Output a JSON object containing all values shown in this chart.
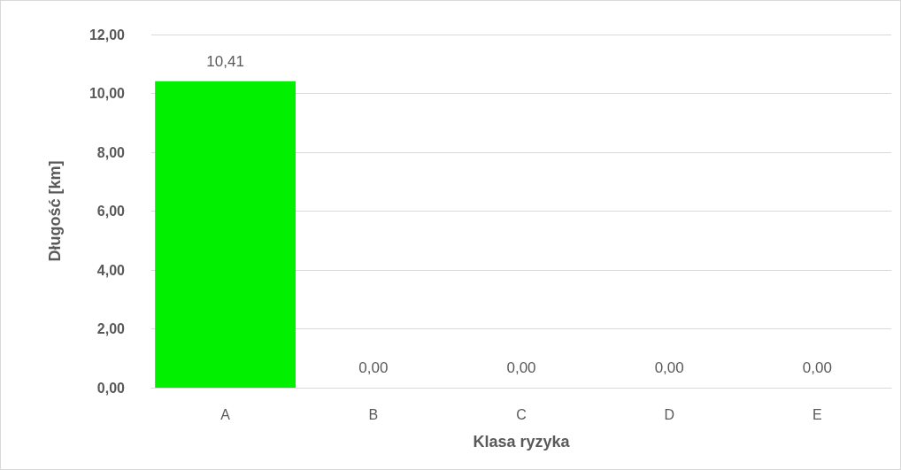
{
  "chart_data": {
    "type": "bar",
    "xlabel": "Klasa ryzyka",
    "ylabel": "Długość [km]",
    "categories": [
      "A",
      "B",
      "C",
      "D",
      "E"
    ],
    "values": [
      10.41,
      0,
      0,
      0,
      0
    ],
    "value_labels": [
      "10,41",
      "0,00",
      "0,00",
      "0,00",
      "0,00"
    ],
    "color": "#00f000",
    "ylim": [
      0,
      12
    ],
    "yticks": [
      {
        "value": 0,
        "label": "0,00"
      },
      {
        "value": 2,
        "label": "2,00"
      },
      {
        "value": 4,
        "label": "4,00"
      },
      {
        "value": 6,
        "label": "6,00"
      },
      {
        "value": 8,
        "label": "8,00"
      },
      {
        "value": 10,
        "label": "10,00"
      },
      {
        "value": 12,
        "label": "12,00"
      }
    ],
    "grid": "y"
  }
}
